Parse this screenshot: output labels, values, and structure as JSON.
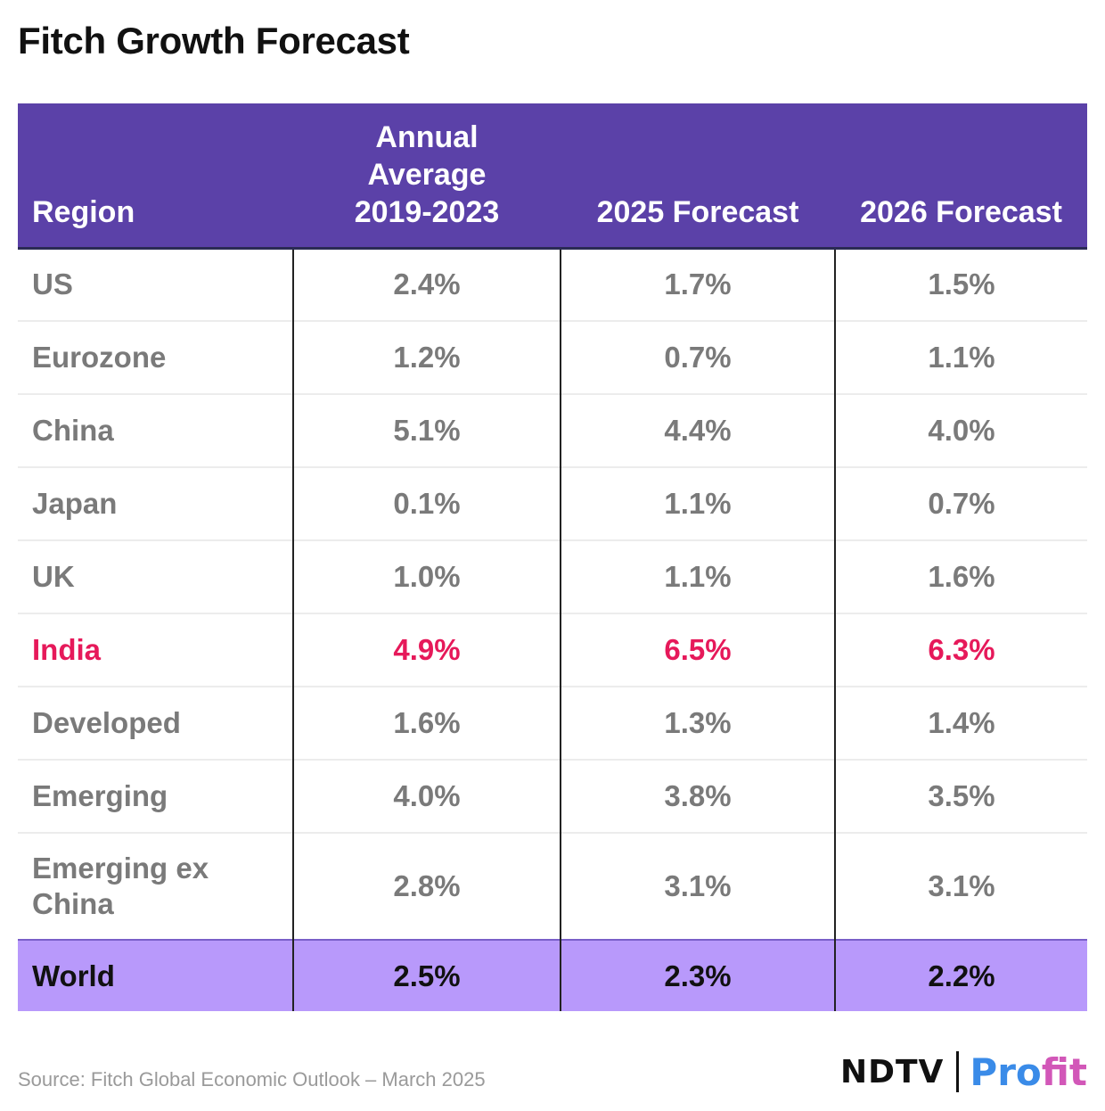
{
  "title": "Fitch Growth Forecast",
  "chart_data": {
    "type": "table",
    "columns": [
      {
        "name": "Region",
        "lines": [
          "Region"
        ]
      },
      {
        "name": "Annual Average 2019-2023",
        "lines": [
          "Annual",
          "Average",
          "2019-2023"
        ]
      },
      {
        "name": "2025 Forecast",
        "lines": [
          "2025 Forecast"
        ]
      },
      {
        "name": "2026 Forecast",
        "lines": [
          "2026 Forecast"
        ]
      }
    ],
    "rows": [
      {
        "region": "US",
        "values": [
          "2.4%",
          "1.7%",
          "1.5%"
        ]
      },
      {
        "region": "Eurozone",
        "values": [
          "1.2%",
          "0.7%",
          "1.1%"
        ]
      },
      {
        "region": "China",
        "values": [
          "5.1%",
          "4.4%",
          "4.0%"
        ]
      },
      {
        "region": "Japan",
        "values": [
          "0.1%",
          "1.1%",
          "0.7%"
        ]
      },
      {
        "region": "UK",
        "values": [
          "1.0%",
          "1.1%",
          "1.6%"
        ]
      },
      {
        "region": "India",
        "values": [
          "4.9%",
          "6.5%",
          "6.3%"
        ],
        "highlight": true
      },
      {
        "region": "Developed",
        "values": [
          "1.6%",
          "1.3%",
          "1.4%"
        ]
      },
      {
        "region": "Emerging",
        "values": [
          "4.0%",
          "3.8%",
          "3.5%"
        ]
      },
      {
        "region": "Emerging ex China",
        "lines": [
          "Emerging ex",
          "China"
        ],
        "values": [
          "2.8%",
          "3.1%",
          "3.1%"
        ]
      }
    ],
    "total": {
      "region": "World",
      "values": [
        "2.5%",
        "2.3%",
        "2.2%"
      ]
    }
  },
  "footer": {
    "source": "Source: Fitch Global Economic Outlook – March 2025",
    "logo_left": "NDTV",
    "logo_right_a": "Pro",
    "logo_right_b": "fit"
  },
  "colors": {
    "header_bg": "#5b41a8",
    "highlight_text": "#e6195a",
    "total_bg": "#b899fb"
  }
}
